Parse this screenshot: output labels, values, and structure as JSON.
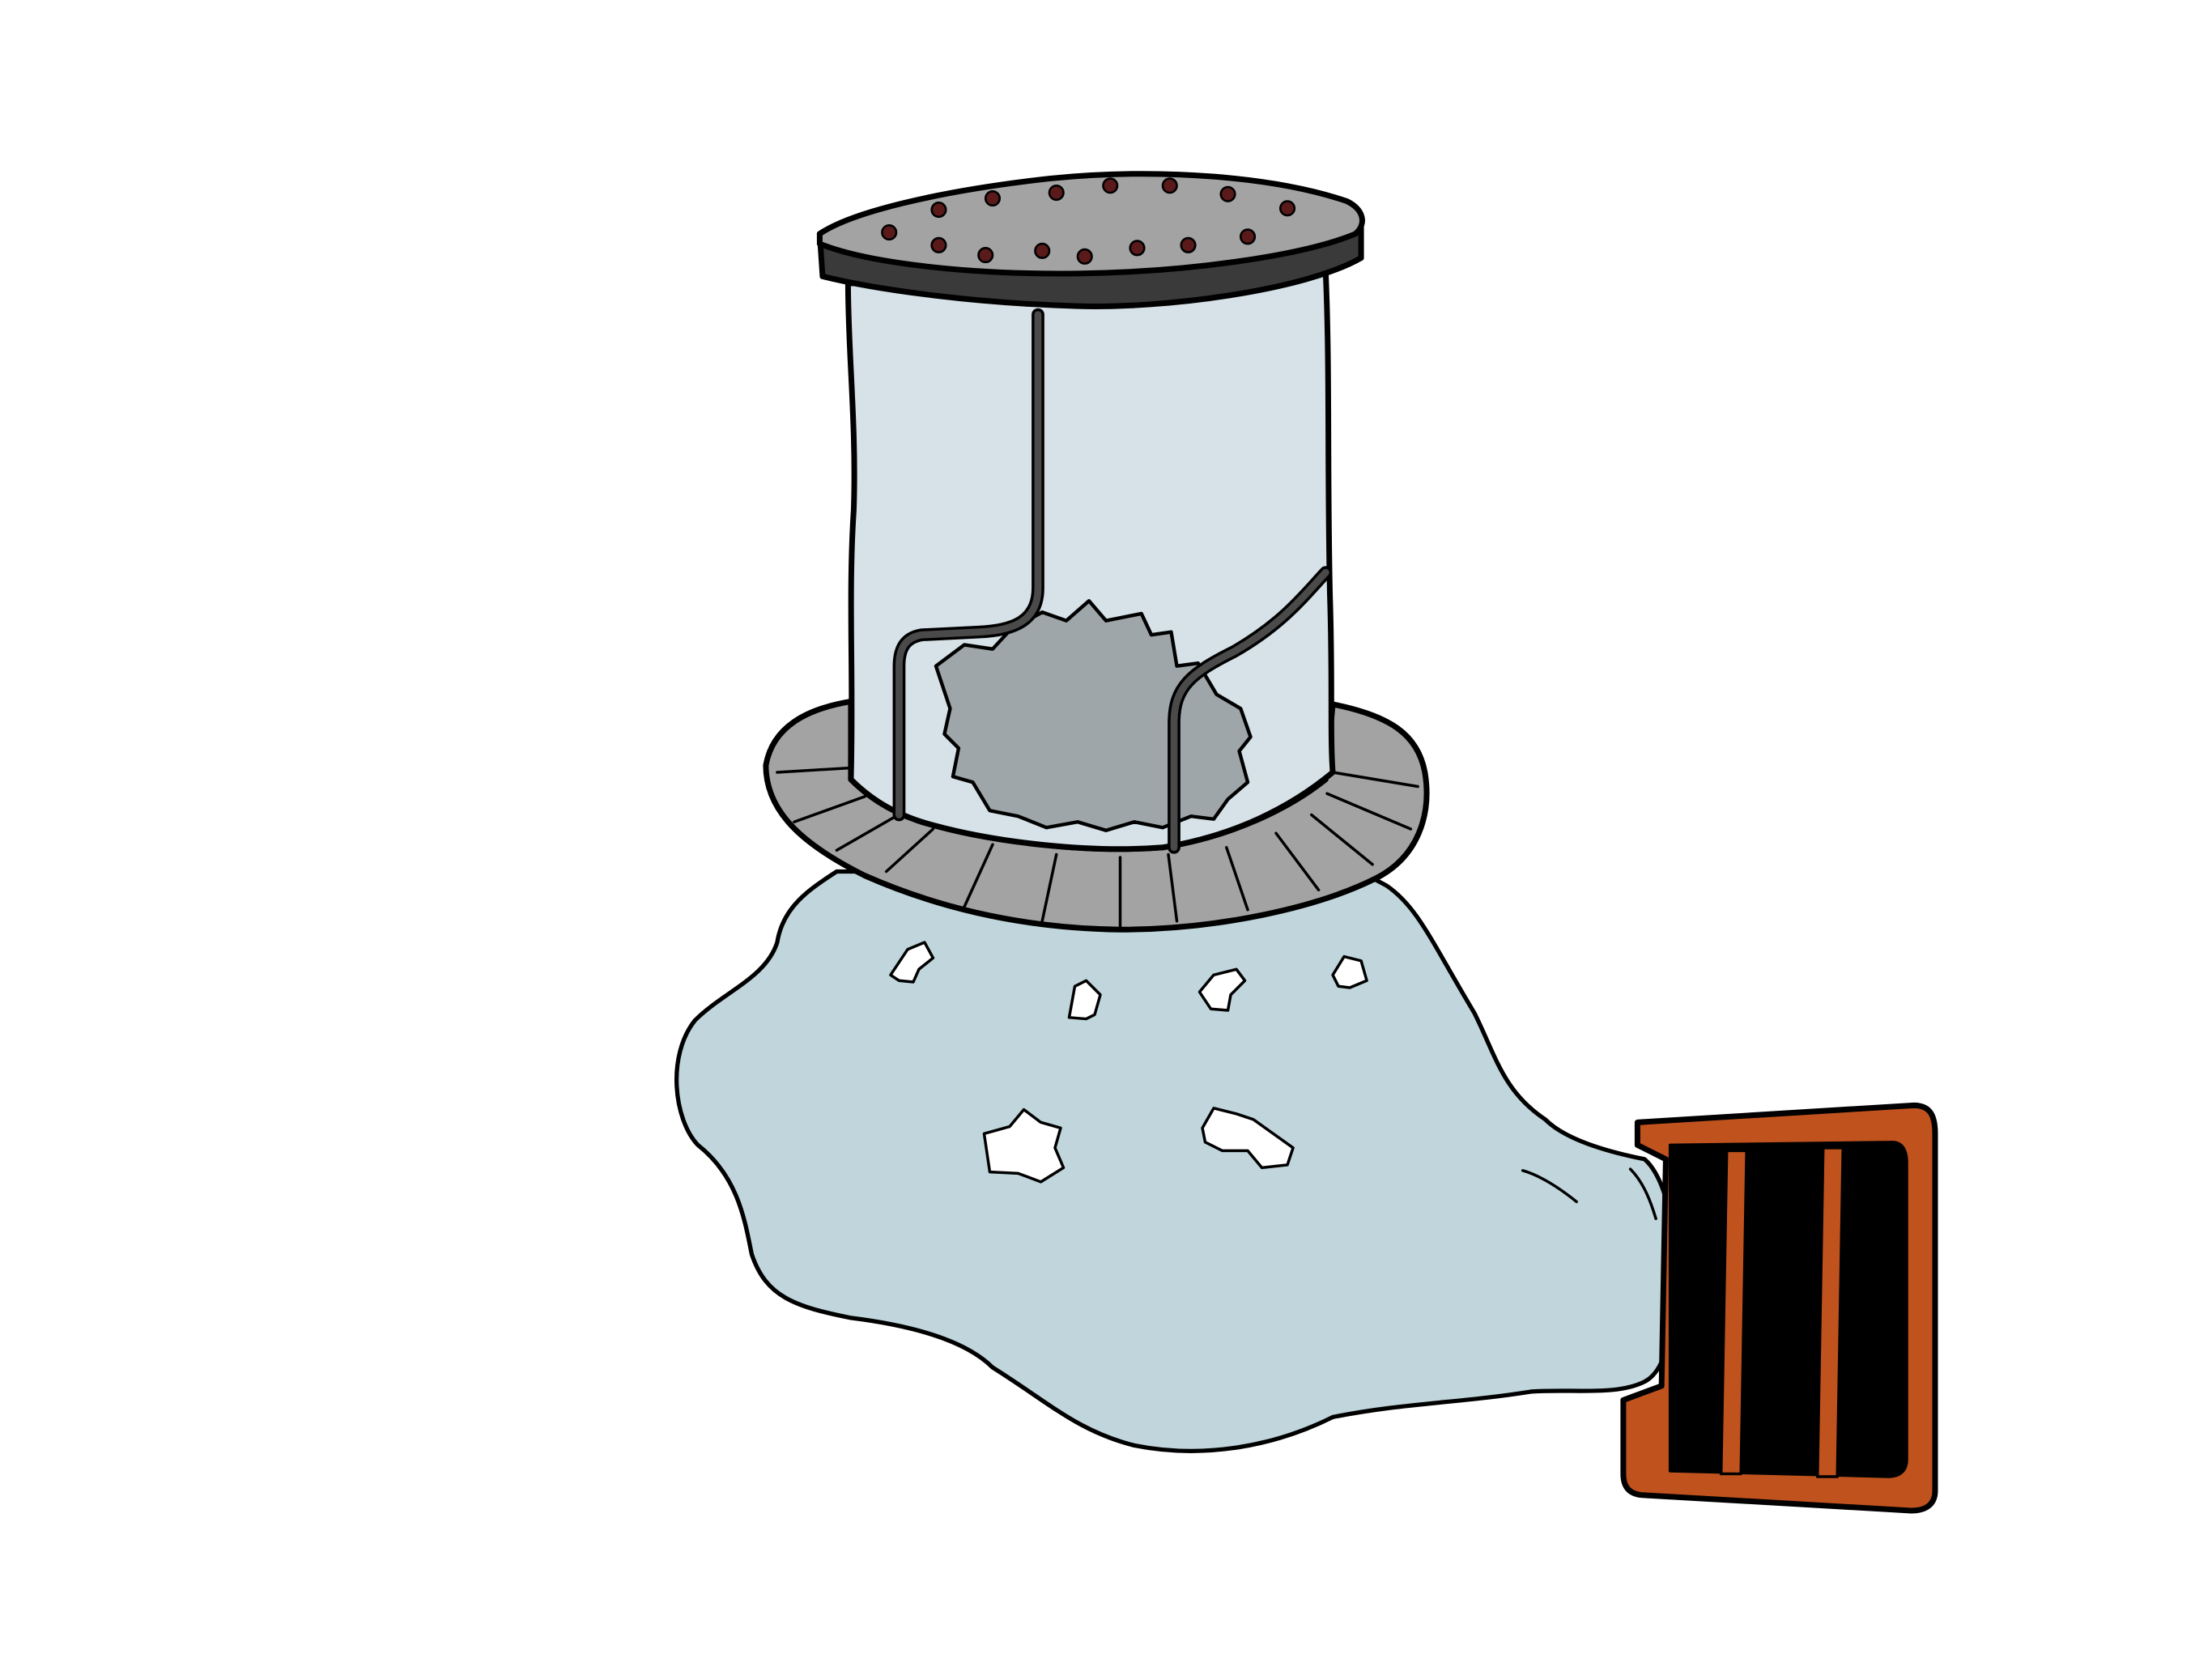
{
  "illustration": {
    "subject": "sieve-bag-on-vent-icon",
    "colors": {
      "background": "#ffffff",
      "outline": "#000000",
      "lid": "#a3a3a3",
      "lid_rim": "#3a3a3a",
      "lid_holes": "#5a1a1a",
      "cylinder": "#d6e2e8",
      "inner_disc": "#9ea6aa",
      "wire": "#4a4a4a",
      "collar": "#a3a3a3",
      "bag": "#c0d6dc",
      "vent_frame": "#c0521e",
      "vent_slot": "#000000"
    }
  }
}
